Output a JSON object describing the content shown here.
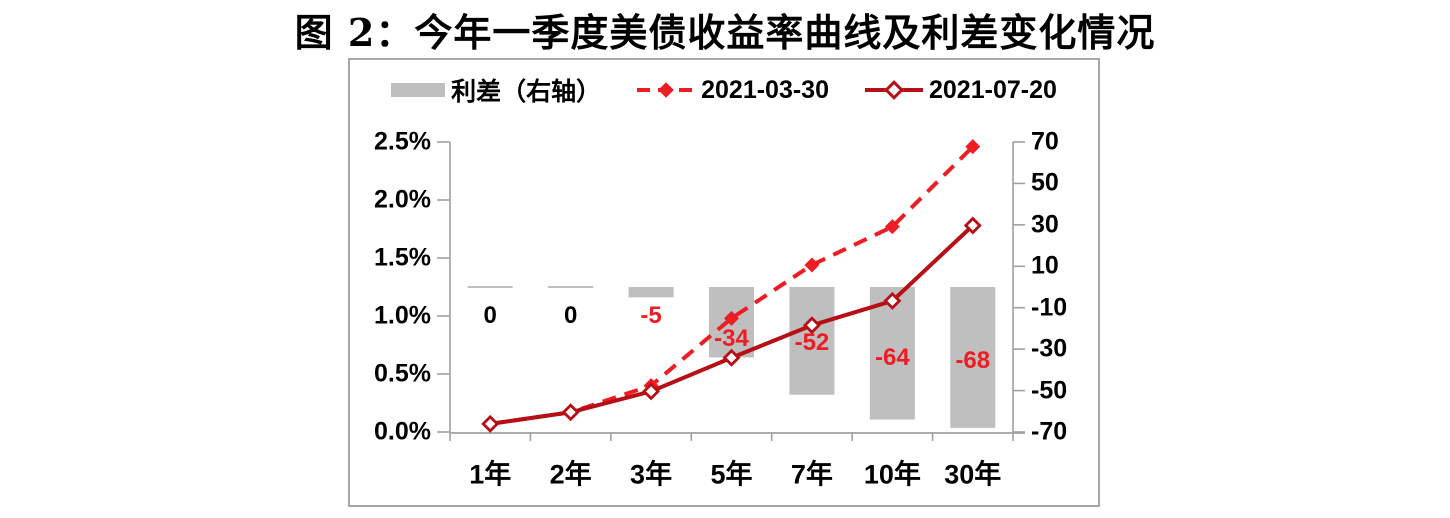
{
  "title": "图 2：今年一季度美债收益率曲线及利差变化情况",
  "legend": [
    {
      "label": "利差（右轴）",
      "swatch": "gray-bar-swatch"
    },
    {
      "label": "2021-03-30",
      "swatch": "red-dashed-line-swatch"
    },
    {
      "label": "2021-07-20",
      "swatch": "darkred-solid-line-swatch"
    }
  ],
  "colors": {
    "bar": "#bfbfbf",
    "dashed": "#ee1c23",
    "solid": "#b60f15",
    "axis": "#a0a0a0",
    "border": "#a6a6a6",
    "text": "#000000"
  },
  "chart_data": {
    "type": "combo-bar-line",
    "categories": [
      "1年",
      "2年",
      "3年",
      "5年",
      "7年",
      "10年",
      "30年"
    ],
    "bar_series": {
      "name": "利差（右轴）",
      "axis": "right",
      "values": [
        0,
        0,
        -5,
        -34,
        -52,
        -64,
        -68
      ],
      "labels": [
        "0",
        "0",
        "-5",
        "-34",
        "-52",
        "-64",
        "-68"
      ]
    },
    "series": [
      {
        "name": "2021-03-30",
        "style": "dashed",
        "marker": "filled-diamond",
        "axis": "left",
        "values": [
          0.07,
          0.17,
          0.4,
          0.98,
          1.44,
          1.77,
          2.46
        ]
      },
      {
        "name": "2021-07-20",
        "style": "solid",
        "marker": "open-diamond",
        "axis": "left",
        "values": [
          0.07,
          0.17,
          0.35,
          0.64,
          0.92,
          1.13,
          1.78
        ]
      }
    ],
    "left_axis": {
      "ticks": [
        "0.0%",
        "0.5%",
        "1.0%",
        "1.5%",
        "2.0%",
        "2.5%"
      ],
      "min": 0,
      "max": 2.5,
      "step": 0.5,
      "unit": "%"
    },
    "right_axis": {
      "ticks": [
        "70",
        "50",
        "30",
        "10",
        "-10",
        "-30",
        "-50",
        "-70"
      ],
      "min": -70,
      "max": 70,
      "step": 20
    },
    "grid": false,
    "legend_position": "top"
  }
}
